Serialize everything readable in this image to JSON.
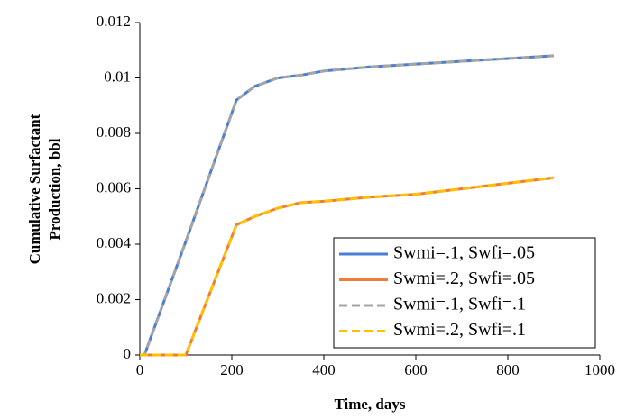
{
  "chart_data": {
    "type": "line",
    "xlabel": "Time, days",
    "ylabel": [
      "Cumulative Surfactant",
      "Production, bbl"
    ],
    "x": [
      0,
      10,
      100,
      210,
      250,
      300,
      350,
      400,
      500,
      600,
      700,
      800,
      900
    ],
    "series": [
      {
        "name": "Swmi=.1, Swfi=.05",
        "color": "#4a7fd4",
        "dash": false,
        "values": [
          0,
          0,
          0.0041,
          0.0092,
          0.0097,
          0.01,
          0.0101,
          0.01025,
          0.0104,
          0.0105,
          0.0106,
          0.0107,
          0.0108
        ]
      },
      {
        "name": "Swmi=.2, Swfi=.05",
        "color": "#ee7d3b",
        "dash": false,
        "values": [
          0,
          0,
          0,
          0.0047,
          0.005,
          0.0053,
          0.0055,
          0.00555,
          0.0057,
          0.0058,
          0.006,
          0.0062,
          0.0064
        ]
      },
      {
        "name": "Swmi=.1, Swfi=.1",
        "color": "#a5a5a5",
        "dash": true,
        "values": [
          0,
          0,
          0.0041,
          0.0092,
          0.0097,
          0.01,
          0.0101,
          0.01025,
          0.0104,
          0.0105,
          0.0106,
          0.0107,
          0.0108
        ]
      },
      {
        "name": "Swmi=.2, Swfi=.1",
        "color": "#ffc000",
        "dash": true,
        "values": [
          0,
          0,
          0,
          0.0047,
          0.005,
          0.0053,
          0.0055,
          0.00555,
          0.0057,
          0.0058,
          0.006,
          0.0062,
          0.0064
        ]
      }
    ],
    "xlim": [
      0,
      1000
    ],
    "xticks": [
      0,
      200,
      400,
      600,
      800,
      1000
    ],
    "ylim": [
      0,
      0.012
    ],
    "yticks": [
      0,
      0.002,
      0.004,
      0.006,
      0.008,
      0.01,
      0.012
    ],
    "grid": false,
    "legend": "lower right"
  }
}
